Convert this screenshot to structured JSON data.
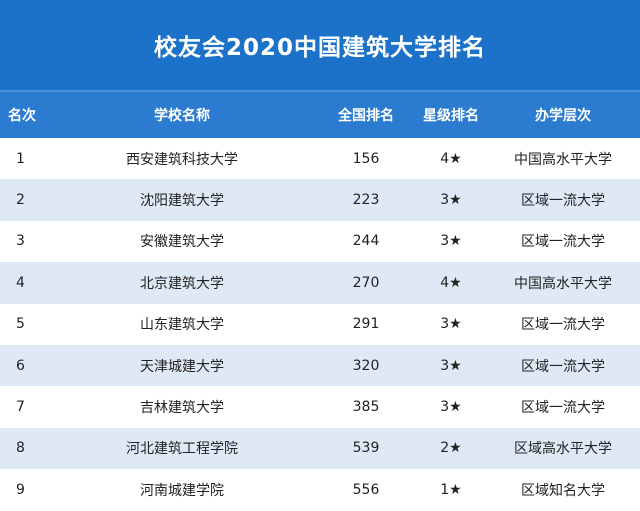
{
  "title": "校友会2020中国建筑大学排名",
  "columns": {
    "rank": "名次",
    "school": "学校名称",
    "national_rank": "全国排名",
    "star_rank": "星级排名",
    "level": "办学层次"
  },
  "rows": [
    {
      "rank": "1",
      "school": "西安建筑科技大学",
      "national_rank": "156",
      "star": "4★",
      "level": "中国高水平大学"
    },
    {
      "rank": "2",
      "school": "沈阳建筑大学",
      "national_rank": "223",
      "star": "3★",
      "level": "区域一流大学"
    },
    {
      "rank": "3",
      "school": "安徽建筑大学",
      "national_rank": "244",
      "star": "3★",
      "level": "区域一流大学"
    },
    {
      "rank": "4",
      "school": "北京建筑大学",
      "national_rank": "270",
      "star": "4★",
      "level": "中国高水平大学"
    },
    {
      "rank": "5",
      "school": "山东建筑大学",
      "national_rank": "291",
      "star": "3★",
      "level": "区域一流大学"
    },
    {
      "rank": "6",
      "school": "天津城建大学",
      "national_rank": "320",
      "star": "3★",
      "level": "区域一流大学"
    },
    {
      "rank": "7",
      "school": "吉林建筑大学",
      "national_rank": "385",
      "star": "3★",
      "level": "区域一流大学"
    },
    {
      "rank": "8",
      "school": "河北建筑工程学院",
      "national_rank": "539",
      "star": "2★",
      "level": "区域高水平大学"
    },
    {
      "rank": "9",
      "school": "河南城建学院",
      "national_rank": "556",
      "star": "1★",
      "level": "区域知名大学"
    }
  ],
  "colors": {
    "title_bg": "#1b72c8",
    "header_bg": "#2b7bd0",
    "stripe": "#dfe9f6"
  }
}
